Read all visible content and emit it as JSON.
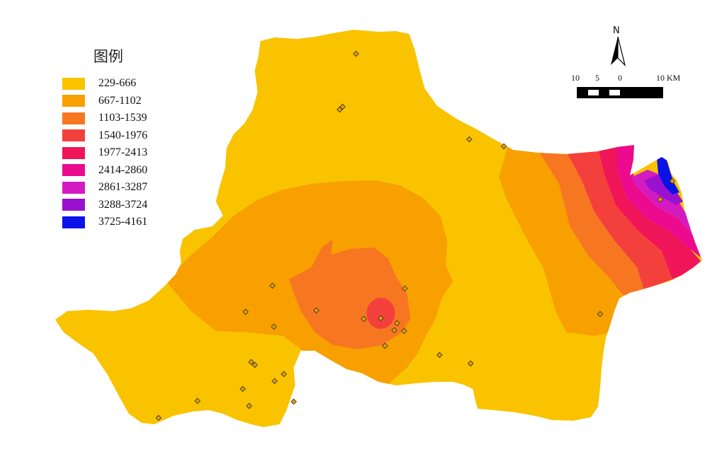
{
  "legend": {
    "title": "图例",
    "items": [
      {
        "label": "229-666",
        "color": "#f9c300"
      },
      {
        "label": "667-1102",
        "color": "#f7a000"
      },
      {
        "label": "1103-1539",
        "color": "#f77622"
      },
      {
        "label": "1540-1976",
        "color": "#f4403c"
      },
      {
        "label": "1977-2413",
        "color": "#f01558"
      },
      {
        "label": "2414-2860",
        "color": "#ec0b8e"
      },
      {
        "label": "2861-3287",
        "color": "#d41bc2"
      },
      {
        "label": "3288-3724",
        "color": "#9a12cf"
      },
      {
        "label": "3725-4161",
        "color": "#0a12e8"
      }
    ]
  },
  "north_arrow": {
    "letter": "N"
  },
  "scale_bar": {
    "labels": [
      "10",
      "5",
      "0",
      "10 KM"
    ]
  }
}
